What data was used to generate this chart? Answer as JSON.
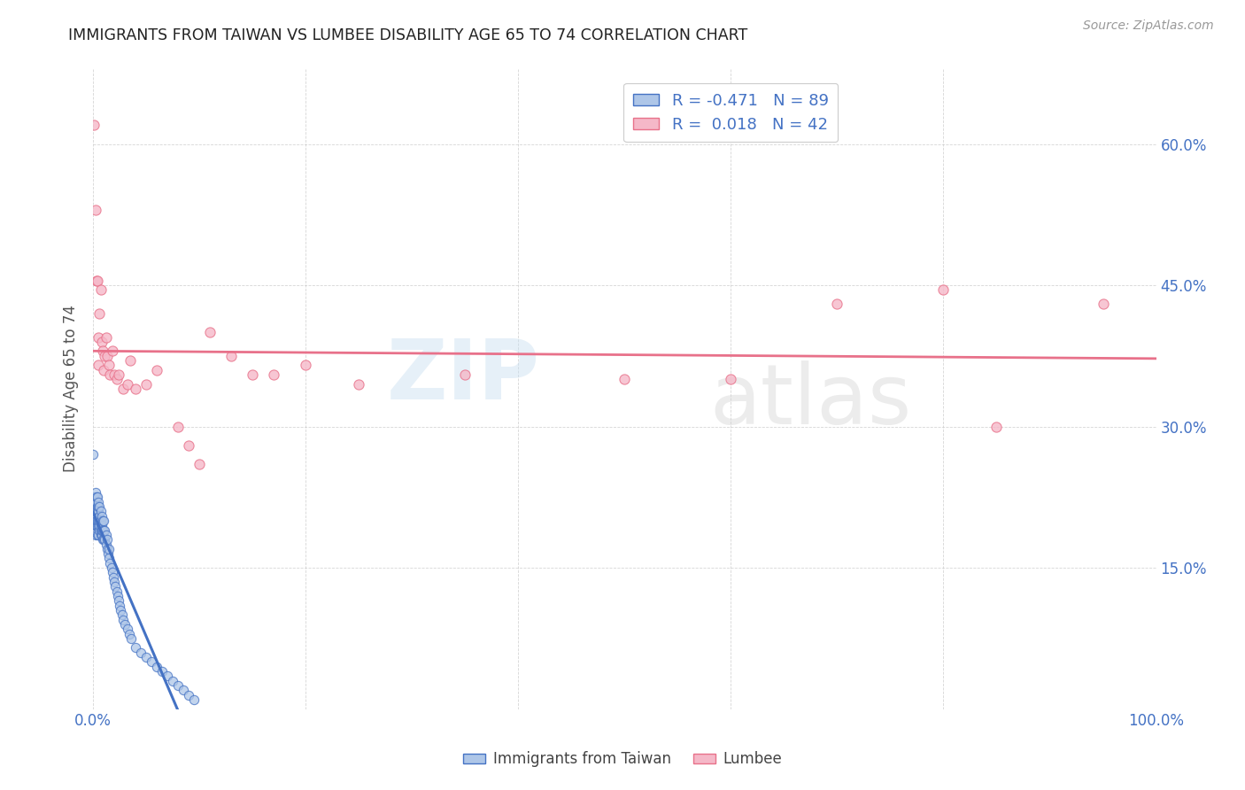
{
  "title": "IMMIGRANTS FROM TAIWAN VS LUMBEE DISABILITY AGE 65 TO 74 CORRELATION CHART",
  "source": "Source: ZipAtlas.com",
  "ylabel": "Disability Age 65 to 74",
  "taiwan_R": -0.471,
  "taiwan_N": 89,
  "lumbee_R": 0.018,
  "lumbee_N": 42,
  "taiwan_color": "#aec6e8",
  "lumbee_color": "#f5b8c8",
  "taiwan_edge_color": "#4472c4",
  "lumbee_edge_color": "#e8718a",
  "taiwan_line_color": "#4472c4",
  "lumbee_line_color": "#e8718a",
  "taiwan_scatter_x": [
    0.0,
    0.001,
    0.001,
    0.001,
    0.001,
    0.001,
    0.002,
    0.002,
    0.002,
    0.002,
    0.002,
    0.002,
    0.002,
    0.003,
    0.003,
    0.003,
    0.003,
    0.003,
    0.004,
    0.004,
    0.004,
    0.004,
    0.004,
    0.004,
    0.005,
    0.005,
    0.005,
    0.005,
    0.005,
    0.005,
    0.005,
    0.006,
    0.006,
    0.006,
    0.006,
    0.006,
    0.007,
    0.007,
    0.007,
    0.007,
    0.007,
    0.008,
    0.008,
    0.008,
    0.008,
    0.009,
    0.009,
    0.009,
    0.01,
    0.01,
    0.01,
    0.011,
    0.011,
    0.012,
    0.012,
    0.013,
    0.013,
    0.014,
    0.015,
    0.015,
    0.016,
    0.017,
    0.018,
    0.019,
    0.02,
    0.021,
    0.022,
    0.023,
    0.024,
    0.025,
    0.026,
    0.027,
    0.028,
    0.03,
    0.032,
    0.034,
    0.036,
    0.04,
    0.045,
    0.05,
    0.055,
    0.06,
    0.065,
    0.07,
    0.075,
    0.08,
    0.085,
    0.09,
    0.095
  ],
  "taiwan_scatter_y": [
    0.27,
    0.195,
    0.205,
    0.215,
    0.22,
    0.225,
    0.185,
    0.195,
    0.2,
    0.21,
    0.215,
    0.22,
    0.23,
    0.195,
    0.2,
    0.21,
    0.22,
    0.225,
    0.185,
    0.195,
    0.2,
    0.21,
    0.215,
    0.225,
    0.185,
    0.195,
    0.2,
    0.205,
    0.21,
    0.215,
    0.22,
    0.19,
    0.195,
    0.2,
    0.205,
    0.215,
    0.185,
    0.19,
    0.195,
    0.2,
    0.21,
    0.185,
    0.19,
    0.195,
    0.205,
    0.18,
    0.19,
    0.2,
    0.18,
    0.19,
    0.2,
    0.18,
    0.19,
    0.175,
    0.185,
    0.17,
    0.18,
    0.165,
    0.16,
    0.17,
    0.155,
    0.15,
    0.145,
    0.14,
    0.135,
    0.13,
    0.125,
    0.12,
    0.115,
    0.11,
    0.105,
    0.1,
    0.095,
    0.09,
    0.085,
    0.08,
    0.075,
    0.065,
    0.06,
    0.055,
    0.05,
    0.045,
    0.04,
    0.035,
    0.03,
    0.025,
    0.02,
    0.015,
    0.01
  ],
  "lumbee_scatter_x": [
    0.001,
    0.002,
    0.003,
    0.004,
    0.005,
    0.005,
    0.006,
    0.007,
    0.008,
    0.009,
    0.01,
    0.011,
    0.012,
    0.013,
    0.015,
    0.016,
    0.018,
    0.02,
    0.022,
    0.024,
    0.028,
    0.032,
    0.035,
    0.04,
    0.05,
    0.06,
    0.08,
    0.09,
    0.1,
    0.11,
    0.13,
    0.15,
    0.17,
    0.2,
    0.25,
    0.35,
    0.5,
    0.6,
    0.7,
    0.8,
    0.85,
    0.95
  ],
  "lumbee_scatter_y": [
    0.62,
    0.53,
    0.455,
    0.455,
    0.395,
    0.365,
    0.42,
    0.445,
    0.39,
    0.38,
    0.36,
    0.375,
    0.395,
    0.375,
    0.365,
    0.355,
    0.38,
    0.355,
    0.35,
    0.355,
    0.34,
    0.345,
    0.37,
    0.34,
    0.345,
    0.36,
    0.3,
    0.28,
    0.26,
    0.4,
    0.375,
    0.355,
    0.355,
    0.365,
    0.345,
    0.355,
    0.35,
    0.35,
    0.43,
    0.445,
    0.3,
    0.43
  ],
  "watermark_zip": "ZIP",
  "watermark_atlas": "atlas",
  "legend_taiwan_label": "R = -0.471   N = 89",
  "legend_lumbee_label": "R =  0.018   N = 42",
  "bottom_legend_taiwan": "Immigrants from Taiwan",
  "bottom_legend_lumbee": "Lumbee",
  "background_color": "#ffffff",
  "grid_color": "#cccccc",
  "title_color": "#222222",
  "tick_color": "#4472c4",
  "xlim": [
    0.0,
    1.0
  ],
  "ylim": [
    0.0,
    0.68
  ],
  "x_ticks": [
    0.0,
    0.2,
    0.4,
    0.6,
    0.8,
    1.0
  ],
  "x_tick_labels": [
    "0.0%",
    "",
    "",
    "",
    "",
    "100.0%"
  ],
  "y_ticks": [
    0.0,
    0.15,
    0.3,
    0.45,
    0.6
  ],
  "y_right_labels": [
    "",
    "15.0%",
    "30.0%",
    "45.0%",
    "60.0%"
  ]
}
